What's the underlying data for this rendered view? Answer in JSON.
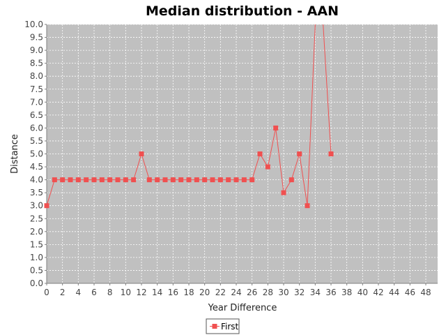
{
  "chart_data": {
    "type": "line",
    "title": "Median distribution - AAN",
    "xlabel": "Year Difference",
    "ylabel": "Distance",
    "xlim": [
      0,
      49.5
    ],
    "ylim": [
      0.0,
      10.0
    ],
    "x_ticks": [
      "0",
      "2",
      "4",
      "6",
      "8",
      "10",
      "12",
      "14",
      "16",
      "18",
      "20",
      "22",
      "24",
      "26",
      "28",
      "30",
      "32",
      "34",
      "36",
      "38",
      "40",
      "42",
      "44",
      "46",
      "48"
    ],
    "y_ticks": [
      "0.0",
      "0.5",
      "1.0",
      "1.5",
      "2.0",
      "2.5",
      "3.0",
      "3.5",
      "4.0",
      "4.5",
      "5.0",
      "5.5",
      "6.0",
      "6.5",
      "7.0",
      "7.5",
      "8.0",
      "8.5",
      "9.0",
      "9.5",
      "10.0"
    ],
    "grid": true,
    "legend_position": "bottom",
    "series": [
      {
        "name": "First",
        "color": "#f05050",
        "x": [
          0,
          1,
          2,
          3,
          4,
          5,
          6,
          7,
          8,
          9,
          10,
          11,
          12,
          13,
          14,
          15,
          16,
          17,
          18,
          19,
          20,
          21,
          22,
          23,
          24,
          25,
          26,
          27,
          28,
          29,
          30,
          31,
          32,
          33,
          36
        ],
        "values": [
          3.0,
          4.0,
          4.0,
          4.0,
          4.0,
          4.0,
          4.0,
          4.0,
          4.0,
          4.0,
          4.0,
          4.0,
          5.0,
          4.0,
          4.0,
          4.0,
          4.0,
          4.0,
          4.0,
          4.0,
          4.0,
          4.0,
          4.0,
          4.0,
          4.0,
          4.0,
          4.0,
          5.0,
          4.5,
          6.0,
          3.5,
          4.0,
          5.0,
          3.0,
          5.0
        ],
        "off_scale_x": [
          34,
          35
        ],
        "off_scale_direction": "above"
      }
    ]
  }
}
